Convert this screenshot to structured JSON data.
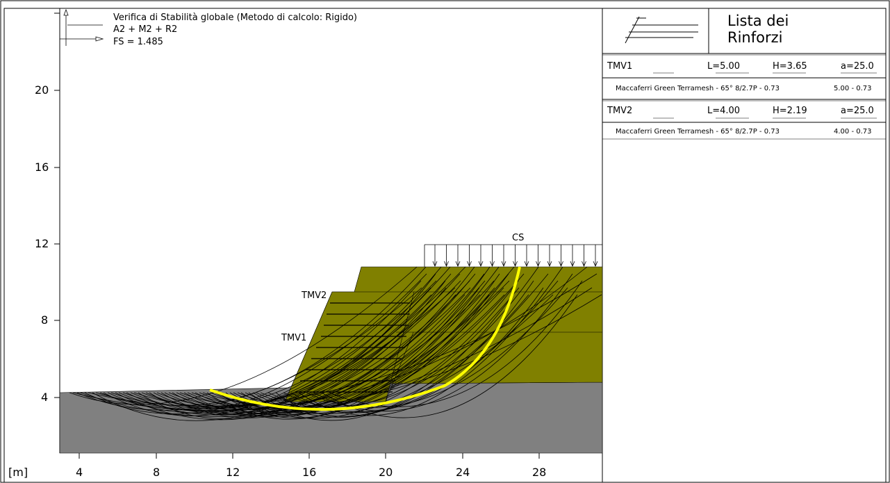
{
  "header": {
    "title": "Verifica di Stabilità globale (Metodo di calcolo: Rigido)",
    "combination": "A2 + M2 + R2",
    "fs": "FS = 1.485"
  },
  "axes": {
    "unit_label": "[m]",
    "x_ticks": [
      "4",
      "8",
      "12",
      "16",
      "20",
      "24",
      "28"
    ],
    "y_ticks": [
      "4",
      "8",
      "12",
      "16",
      "20"
    ]
  },
  "labels": {
    "surcharge": "CS",
    "reinforcement_1": "TMV1",
    "reinforcement_2": "TMV2"
  },
  "panel": {
    "title_line1": "Lista dei",
    "title_line2": "Rinforzi",
    "items": [
      {
        "name": "TMV1",
        "L": "L=5.00",
        "H": "H=3.65",
        "a": "a=25.0",
        "desc": "Maccaferri Green Terramesh - 65° 8/2.7P - 0.73",
        "dims": "5.00 - 0.73"
      },
      {
        "name": "TMV2",
        "L": "L=4.00",
        "H": "H=2.19",
        "a": "a=25.0",
        "desc": "Maccaferri Green Terramesh - 65° 8/2.7P - 0.73",
        "dims": "4.00 - 0.73"
      }
    ]
  },
  "colors": {
    "foundation_soil": "#808080",
    "fill_soil": "#808000",
    "critical_surface": "#ffff00",
    "slip_surfaces": "#000000"
  }
}
